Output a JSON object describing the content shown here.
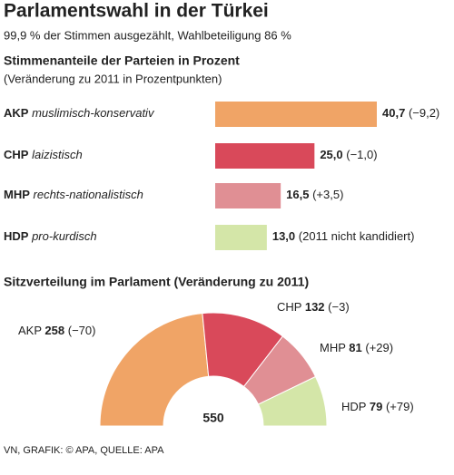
{
  "title": "Parlamentswahl in der Türkei",
  "subtitle": "99,9 % der Stimmen ausgezählt, Wahlbeteiligung 86 %",
  "source": "VN, GRAFIK: © APA, QUELLE: APA",
  "chart_data": [
    {
      "type": "bar",
      "title": "Stimmenanteile der Parteien in Prozent",
      "subtitle": "(Veränderung zu 2011 in Prozentpunkten)",
      "categories": [
        "AKP",
        "CHP",
        "MHP",
        "HDP"
      ],
      "descriptions": [
        "muslimisch-konservativ",
        "laizistisch",
        "rechts-nationalistisch",
        "pro-kurdisch"
      ],
      "values": [
        40.7,
        25.0,
        16.5,
        13.0
      ],
      "value_labels": [
        "40,7",
        "25,0",
        "16,5",
        "13,0"
      ],
      "change_labels": [
        "(−9,2)",
        "(−1,0)",
        "(+3,5)",
        "(2011 nicht kandidiert)"
      ],
      "colors": [
        "#f0a466",
        "#d9495a",
        "#e08f94",
        "#d4e6a8"
      ]
    },
    {
      "type": "pie",
      "title": "Sitzverteilung im Parlament (Veränderung zu 2011)",
      "categories": [
        "AKP",
        "CHP",
        "MHP",
        "HDP"
      ],
      "values": [
        258,
        132,
        81,
        79
      ],
      "change_labels": [
        "(−70)",
        "(−3)",
        "(+29)",
        "(+79)"
      ],
      "total": 550,
      "colors": [
        "#f0a466",
        "#d9495a",
        "#e08f94",
        "#d4e6a8"
      ]
    }
  ]
}
